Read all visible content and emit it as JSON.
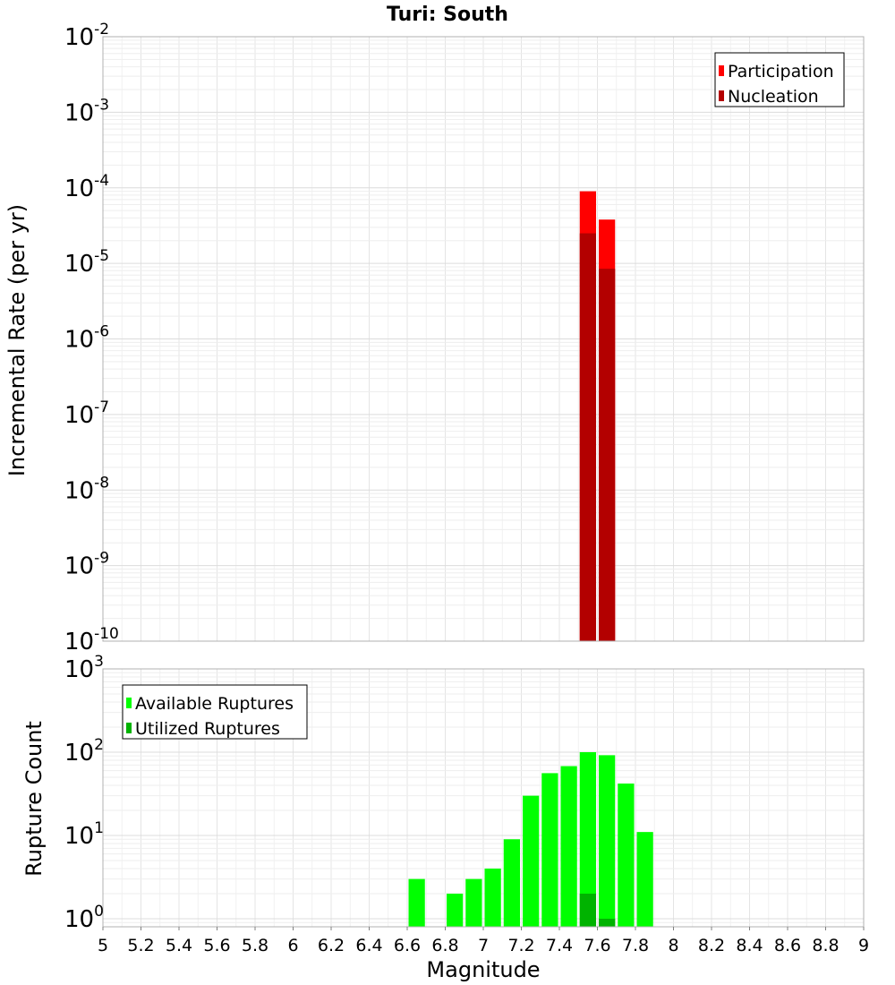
{
  "chart_data": [
    {
      "type": "bar",
      "title": "Turi: South",
      "xlabel": "",
      "ylabel": "Incremental Rate (per yr)",
      "yscale": "log",
      "ylim": [
        1e-10,
        0.01
      ],
      "xlim": [
        5,
        9
      ],
      "bar_width": 0.1,
      "grid": true,
      "legend_position": "top-right",
      "y_tick_exponents": [
        "-10",
        "-9",
        "-8",
        "-7",
        "-6",
        "-5",
        "-4",
        "-3",
        "-2"
      ],
      "y_tick_base": "10",
      "series": [
        {
          "name": "Participation",
          "color": "#ff0000",
          "x": [
            7.55,
            7.65
          ],
          "values": [
            9e-05,
            3.8e-05
          ]
        },
        {
          "name": "Nucleation",
          "color": "#b30000",
          "x": [
            7.55,
            7.65
          ],
          "values": [
            2.5e-05,
            8.5e-06
          ]
        }
      ]
    },
    {
      "type": "bar",
      "title": "",
      "xlabel": "Magnitude",
      "ylabel": "Rupture Count",
      "yscale": "log",
      "ylim": [
        0.8,
        1000
      ],
      "xlim": [
        5,
        9
      ],
      "bar_width": 0.1,
      "grid": true,
      "legend_position": "top-left",
      "y_tick_exponents": [
        "0",
        "1",
        "2",
        "3"
      ],
      "y_tick_base": "10",
      "x_ticks": [
        "5",
        "5.2",
        "5.4",
        "5.6",
        "5.8",
        "6",
        "6.2",
        "6.4",
        "6.6",
        "6.8",
        "7",
        "7.2",
        "7.4",
        "7.6",
        "7.8",
        "8",
        "8.2",
        "8.4",
        "8.6",
        "8.8",
        "9"
      ],
      "series": [
        {
          "name": "Available Ruptures",
          "color": "#00ff00",
          "x": [
            6.65,
            6.85,
            6.95,
            7.05,
            7.15,
            7.25,
            7.35,
            7.45,
            7.55,
            7.65,
            7.75,
            7.85
          ],
          "values": [
            3,
            2,
            3,
            4,
            9,
            30,
            56,
            68,
            100,
            92,
            42,
            11
          ]
        },
        {
          "name": "Utilized Ruptures",
          "color": "#00b300",
          "x": [
            7.55,
            7.65
          ],
          "values": [
            2,
            1
          ]
        }
      ]
    }
  ]
}
